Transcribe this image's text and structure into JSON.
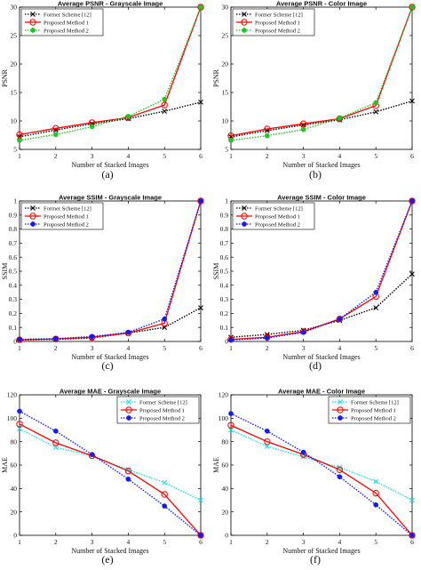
{
  "chart_data": [
    {
      "type": "line",
      "title": "Average PSNR - Grayscale Image",
      "xlabel": "Number of Stacked Images",
      "ylabel": "PSNR",
      "x": [
        1,
        2,
        3,
        4,
        5,
        6
      ],
      "xlim": [
        1,
        6
      ],
      "ylim": [
        5,
        30
      ],
      "yticks": [
        5,
        10,
        15,
        20,
        25,
        30
      ],
      "subcaption": "(a)",
      "legend_position": "top-left",
      "series": [
        {
          "name": "Former Scheme [12]",
          "values": [
            7.2,
            8.4,
            9.5,
            10.4,
            11.7,
            13.3
          ],
          "color": "#000000",
          "marker": "x",
          "dash": "1.5,1.5"
        },
        {
          "name": "Proposed Method 1",
          "values": [
            7.6,
            8.7,
            9.7,
            10.6,
            12.8,
            30
          ],
          "color": "#ff0000",
          "marker": "o",
          "dash": ""
        },
        {
          "name": "Proposed Method 2",
          "values": [
            6.6,
            7.6,
            9.0,
            10.8,
            13.8,
            30
          ],
          "color": "#22c522",
          "marker": "dot",
          "dash": "1.5,1.5"
        }
      ]
    },
    {
      "type": "line",
      "title": "Average PSNR - Color Image",
      "xlabel": "Number of Stacked Images",
      "ylabel": "PSNR",
      "x": [
        1,
        2,
        3,
        4,
        5,
        6
      ],
      "xlim": [
        1,
        6
      ],
      "ylim": [
        5,
        30
      ],
      "yticks": [
        5,
        10,
        15,
        20,
        25,
        30
      ],
      "subcaption": "(b)",
      "legend_position": "top-left",
      "series": [
        {
          "name": "Former Scheme [12]",
          "values": [
            7.2,
            8.3,
            9.3,
            10.2,
            11.6,
            13.5
          ],
          "color": "#000000",
          "marker": "x",
          "dash": "1.5,1.5"
        },
        {
          "name": "Proposed Method 1",
          "values": [
            7.4,
            8.6,
            9.5,
            10.4,
            12.7,
            30
          ],
          "color": "#ff0000",
          "marker": "o",
          "dash": ""
        },
        {
          "name": "Proposed Method 2",
          "values": [
            6.6,
            7.4,
            8.5,
            10.5,
            13.2,
            30
          ],
          "color": "#22c522",
          "marker": "dot",
          "dash": "1.5,1.5"
        }
      ]
    },
    {
      "type": "line",
      "title": "Average SSIM - Grayscale Image",
      "xlabel": "Number of Stacked Images",
      "ylabel": "SSIM",
      "x": [
        1,
        2,
        3,
        4,
        5,
        6
      ],
      "xlim": [
        1,
        6
      ],
      "ylim": [
        0,
        1
      ],
      "yticks": [
        0,
        0.1,
        0.2,
        0.3,
        0.4,
        0.5,
        0.6,
        0.7,
        0.8,
        0.9,
        1
      ],
      "subcaption": "(c)",
      "legend_position": "top-left",
      "series": [
        {
          "name": "Former Scheme [12]",
          "values": [
            0.01,
            0.015,
            0.025,
            0.06,
            0.1,
            0.24
          ],
          "color": "#000000",
          "marker": "x",
          "dash": "1.5,1.5"
        },
        {
          "name": "Proposed Method 1",
          "values": [
            0.012,
            0.018,
            0.03,
            0.06,
            0.13,
            1.0
          ],
          "color": "#ff0000",
          "marker": "o",
          "dash": ""
        },
        {
          "name": "Proposed Method 2",
          "values": [
            0.015,
            0.02,
            0.035,
            0.065,
            0.16,
            1.0
          ],
          "color": "#1a1aee",
          "marker": "dot",
          "dash": "1.5,1.5"
        }
      ]
    },
    {
      "type": "line",
      "title": "Average SSIM - Color Image",
      "xlabel": "Number of Stacked Images",
      "ylabel": "SSIM",
      "x": [
        1,
        2,
        3,
        4,
        5,
        6
      ],
      "xlim": [
        1,
        6
      ],
      "ylim": [
        0,
        1
      ],
      "yticks": [
        0,
        0.1,
        0.2,
        0.3,
        0.4,
        0.5,
        0.6,
        0.7,
        0.8,
        0.9,
        1
      ],
      "subcaption": "(d)",
      "legend_position": "top-left",
      "series": [
        {
          "name": "Former Scheme [12]",
          "values": [
            0.03,
            0.05,
            0.08,
            0.15,
            0.24,
            0.48
          ],
          "color": "#000000",
          "marker": "x",
          "dash": "1.5,1.5"
        },
        {
          "name": "Proposed Method 1",
          "values": [
            0.015,
            0.03,
            0.07,
            0.16,
            0.32,
            1.0
          ],
          "color": "#ff0000",
          "marker": "o",
          "dash": ""
        },
        {
          "name": "Proposed Method 2",
          "values": [
            0.01,
            0.025,
            0.065,
            0.16,
            0.35,
            1.0
          ],
          "color": "#1a1aee",
          "marker": "dot",
          "dash": "1.5,1.5"
        }
      ]
    },
    {
      "type": "line",
      "title": "Average MAE - Grayscale Image",
      "xlabel": "Number of Stacked Images",
      "ylabel": "MAE",
      "x": [
        1,
        2,
        3,
        4,
        5,
        6
      ],
      "xlim": [
        1,
        6
      ],
      "ylim": [
        0,
        120
      ],
      "yticks": [
        0,
        20,
        40,
        60,
        80,
        100,
        120
      ],
      "subcaption": "(e)",
      "legend_position": "top-right",
      "series": [
        {
          "name": "Former Scheme [12]",
          "values": [
            91,
            75,
            68,
            56,
            45,
            30
          ],
          "color": "#22dede",
          "marker": "x",
          "dash": "1.5,1.5"
        },
        {
          "name": "Proposed Method 1",
          "values": [
            95,
            79,
            68,
            55,
            35,
            0
          ],
          "color": "#ff0000",
          "marker": "o",
          "dash": ""
        },
        {
          "name": "Proposed Method 2",
          "values": [
            106,
            89,
            69,
            48,
            25,
            0
          ],
          "color": "#1a1aee",
          "marker": "dot",
          "dash": "1.5,1.5"
        }
      ]
    },
    {
      "type": "line",
      "title": "Average MAE - Color Image",
      "xlabel": "Number of Stacked Images",
      "ylabel": "MAE",
      "x": [
        1,
        2,
        3,
        4,
        5,
        6
      ],
      "xlim": [
        1,
        6
      ],
      "ylim": [
        0,
        120
      ],
      "yticks": [
        0,
        20,
        40,
        60,
        80,
        100,
        120
      ],
      "subcaption": "(f)",
      "legend_position": "top-right",
      "series": [
        {
          "name": "Former Scheme [12]",
          "values": [
            90,
            76,
            67,
            58,
            46,
            30
          ],
          "color": "#22dede",
          "marker": "x",
          "dash": "1.5,1.5"
        },
        {
          "name": "Proposed Method 1",
          "values": [
            94,
            80,
            69,
            56,
            36,
            0
          ],
          "color": "#ff0000",
          "marker": "o",
          "dash": ""
        },
        {
          "name": "Proposed Method 2",
          "values": [
            104,
            89,
            71,
            50,
            26,
            0
          ],
          "color": "#1a1aee",
          "marker": "dot",
          "dash": "1.5,1.5"
        }
      ]
    }
  ]
}
